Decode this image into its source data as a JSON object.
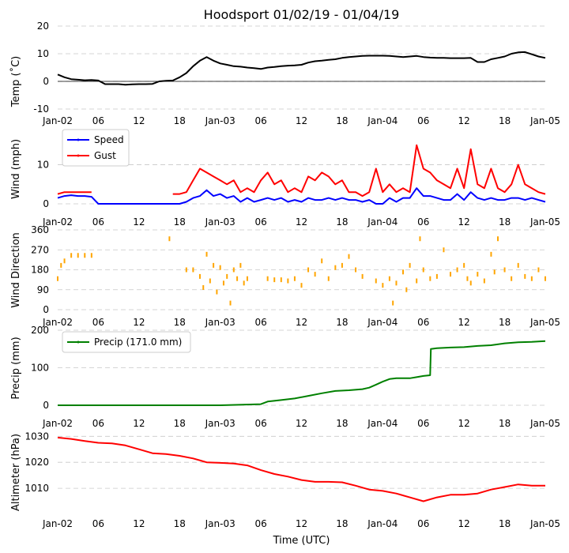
{
  "chart_data": [
    {
      "type": "line",
      "title": "Hoodsport 01/02/19 - 01/04/19",
      "ylabel": "Temp ($^\\circ$C)",
      "ylabel_display": "Temp (˚C)",
      "ylim": [
        -10,
        20
      ],
      "yticks": [
        -10,
        0,
        10,
        20
      ],
      "xticks": [
        "Jan-02",
        "06",
        "12",
        "18",
        "Jan-03",
        "06",
        "12",
        "18",
        "Jan-04",
        "06",
        "12",
        "18",
        "Jan-05"
      ],
      "xlim_hours": [
        0,
        72
      ],
      "zero_line": true,
      "series": [
        {
          "name": "Temp",
          "color": "#000000",
          "x": [
            0,
            1,
            2,
            3,
            4,
            5,
            6,
            7,
            8,
            9,
            10,
            11,
            12,
            13,
            14,
            15,
            16,
            17,
            18,
            19,
            20,
            21,
            22,
            23,
            24,
            25,
            26,
            27,
            28,
            29,
            30,
            31,
            32,
            33,
            34,
            35,
            36,
            37,
            38,
            39,
            40,
            41,
            42,
            43,
            44,
            45,
            46,
            47,
            48,
            49,
            50,
            51,
            52,
            53,
            54,
            55,
            56,
            57,
            58,
            59,
            60,
            61,
            62,
            63,
            64,
            65,
            66,
            67,
            68,
            69,
            70,
            71,
            72
          ],
          "y": [
            2.5,
            1.5,
            0.8,
            0.6,
            0.4,
            0.5,
            0.3,
            -1.0,
            -1.0,
            -1.0,
            -1.2,
            -1.1,
            -1.0,
            -1.0,
            -0.9,
            0.0,
            0.2,
            0.3,
            1.5,
            3.0,
            5.5,
            7.5,
            8.8,
            7.5,
            6.5,
            6.0,
            5.5,
            5.3,
            5.0,
            4.8,
            4.5,
            5.0,
            5.2,
            5.5,
            5.7,
            5.8,
            6.0,
            6.8,
            7.3,
            7.5,
            7.8,
            8.0,
            8.5,
            8.8,
            9.0,
            9.2,
            9.3,
            9.3,
            9.3,
            9.2,
            9.0,
            8.8,
            9.0,
            9.2,
            8.8,
            8.6,
            8.5,
            8.5,
            8.4,
            8.4,
            8.4,
            8.5,
            7.0,
            7.0,
            8.0,
            8.5,
            9.0,
            10.0,
            10.5,
            10.6,
            9.8,
            9.0,
            8.5
          ]
        }
      ]
    },
    {
      "type": "line",
      "ylabel": "Wind (mph)",
      "ylim": [
        0,
        18
      ],
      "yticks": [
        0,
        10
      ],
      "xticks": [
        "Jan-02",
        "06",
        "12",
        "18",
        "Jan-03",
        "06",
        "12",
        "18",
        "Jan-04",
        "06",
        "12",
        "18",
        "Jan-05"
      ],
      "legend": [
        "Speed",
        "Gust"
      ],
      "legend_loc": "upper-left",
      "series": [
        {
          "name": "Speed",
          "color": "#0000ff",
          "x": [
            0,
            1,
            2,
            3,
            4,
            5,
            6,
            7,
            8,
            9,
            10,
            11,
            12,
            13,
            14,
            15,
            16,
            17,
            18,
            19,
            20,
            21,
            22,
            23,
            24,
            25,
            26,
            27,
            28,
            29,
            30,
            31,
            32,
            33,
            34,
            35,
            36,
            37,
            38,
            39,
            40,
            41,
            42,
            43,
            44,
            45,
            46,
            47,
            48,
            49,
            50,
            51,
            52,
            53,
            54,
            55,
            56,
            57,
            58,
            59,
            60,
            61,
            62,
            63,
            64,
            65,
            66,
            67,
            68,
            69,
            70,
            71,
            72
          ],
          "y": [
            1.5,
            2.0,
            2.2,
            2.0,
            2.0,
            1.8,
            0,
            0,
            0,
            0,
            0,
            0,
            0,
            0,
            0,
            0,
            0,
            0,
            0,
            0.5,
            1.5,
            2.0,
            3.5,
            2.0,
            2.5,
            1.5,
            2.0,
            0.5,
            1.5,
            0.5,
            1.0,
            1.5,
            1.0,
            1.5,
            0.5,
            1.0,
            0.5,
            1.5,
            1.0,
            1.0,
            1.5,
            1.0,
            1.5,
            1.0,
            1.0,
            0.5,
            1.0,
            0,
            0,
            1.5,
            0.5,
            1.5,
            1.5,
            4.0,
            2.0,
            2.0,
            1.5,
            1.0,
            1.0,
            2.5,
            1.0,
            3.0,
            1.5,
            1.0,
            1.5,
            1.0,
            1.0,
            1.5,
            1.5,
            1.0,
            1.5,
            1.0,
            0.5
          ]
        },
        {
          "name": "Gust",
          "color": "#ff0000",
          "x": [
            0,
            1,
            2,
            3,
            4,
            5,
            6,
            7,
            8,
            9,
            10,
            11,
            12,
            13,
            14,
            15,
            16,
            17,
            18,
            19,
            20,
            21,
            22,
            23,
            24,
            25,
            26,
            27,
            28,
            29,
            30,
            31,
            32,
            33,
            34,
            35,
            36,
            37,
            38,
            39,
            40,
            41,
            42,
            43,
            44,
            45,
            46,
            47,
            48,
            49,
            50,
            51,
            52,
            53,
            54,
            55,
            56,
            57,
            58,
            59,
            60,
            61,
            62,
            63,
            64,
            65,
            66,
            67,
            68,
            69,
            70,
            71,
            72
          ],
          "y": [
            2.5,
            3.0,
            3.0,
            3.0,
            3.0,
            3.0,
            null,
            null,
            null,
            null,
            null,
            null,
            null,
            null,
            null,
            null,
            null,
            2.5,
            2.5,
            3.0,
            6.0,
            9.0,
            8.0,
            7.0,
            6.0,
            5.0,
            6.0,
            3.0,
            4.0,
            3.0,
            6.0,
            8.0,
            5.0,
            6.0,
            3.0,
            4.0,
            3.0,
            7.0,
            6.0,
            8.0,
            7.0,
            5.0,
            6.0,
            3.0,
            3.0,
            2.0,
            3.0,
            9.0,
            3.0,
            5.0,
            3.0,
            4.0,
            3.0,
            15.0,
            9.0,
            8.0,
            6.0,
            5.0,
            4.0,
            9.0,
            4.0,
            14.0,
            5.0,
            4.0,
            9.0,
            4.0,
            3.0,
            5.0,
            10.0,
            5.0,
            4.0,
            3.0,
            2.5
          ]
        }
      ]
    },
    {
      "type": "scatter",
      "ylabel": "Wind Direction",
      "ylim": [
        0,
        360
      ],
      "yticks": [
        0,
        90,
        180,
        270,
        360
      ],
      "xticks": [
        "Jan-02",
        "06",
        "12",
        "18",
        "Jan-03",
        "06",
        "12",
        "18",
        "Jan-04",
        "06",
        "12",
        "18",
        "Jan-05"
      ],
      "series": [
        {
          "name": "Direction",
          "color": "#ffa500",
          "x": [
            0,
            0.5,
            1,
            2,
            3,
            4,
            5,
            16.5,
            19,
            20,
            21,
            21.5,
            22,
            22.5,
            23,
            23.5,
            24,
            24.5,
            25,
            25.5,
            26,
            26.5,
            27,
            27.5,
            28,
            31,
            32,
            33,
            34,
            35,
            36,
            37,
            38,
            39,
            40,
            41,
            42,
            43,
            44,
            45,
            47,
            48,
            49,
            49.5,
            50,
            51,
            51.5,
            52,
            53,
            53.5,
            54,
            55,
            56,
            57,
            58,
            59,
            60,
            60.5,
            61,
            62,
            63,
            64,
            64.5,
            65,
            66,
            67,
            68,
            69,
            70,
            71,
            72
          ],
          "y": [
            140,
            200,
            220,
            245,
            245,
            245,
            245,
            320,
            180,
            180,
            150,
            100,
            250,
            130,
            200,
            80,
            190,
            120,
            150,
            30,
            180,
            140,
            200,
            120,
            140,
            140,
            135,
            135,
            130,
            140,
            110,
            180,
            160,
            220,
            140,
            190,
            200,
            240,
            180,
            150,
            130,
            110,
            140,
            30,
            120,
            170,
            90,
            200,
            130,
            320,
            180,
            140,
            150,
            270,
            160,
            180,
            200,
            140,
            120,
            160,
            130,
            250,
            170,
            320,
            180,
            140,
            200,
            150,
            140,
            180,
            140
          ]
        }
      ]
    },
    {
      "type": "line",
      "ylabel": "Precip (mm)",
      "ylim": [
        0,
        200
      ],
      "yticks": [
        0,
        100,
        200
      ],
      "xticks": [
        "Jan-02",
        "06",
        "12",
        "18",
        "Jan-03",
        "06",
        "12",
        "18",
        "Jan-04",
        "06",
        "12",
        "18",
        "Jan-05"
      ],
      "legend": [
        "Precip (171.0 mm)"
      ],
      "legend_loc": "upper-left",
      "series": [
        {
          "name": "Precip (171.0 mm)",
          "color": "#008000",
          "x": [
            0,
            6,
            12,
            18,
            24,
            30,
            31,
            33,
            35,
            37,
            39,
            41,
            43,
            45,
            46,
            47,
            48,
            49,
            50,
            51,
            52,
            53,
            54,
            55,
            55.1,
            56,
            58,
            60,
            62,
            64,
            66,
            68,
            70,
            72
          ],
          "y": [
            0,
            0,
            0,
            0,
            0,
            3,
            10,
            14,
            18,
            25,
            32,
            38,
            40,
            43,
            47,
            55,
            63,
            70,
            72,
            72,
            72,
            75,
            78,
            80,
            150,
            152,
            154,
            155,
            158,
            160,
            165,
            168,
            169,
            171
          ]
        }
      ]
    },
    {
      "type": "line",
      "ylabel": "Altimeter (hPa)",
      "xlabel": "Time (UTC)",
      "ylim": [
        1000,
        1031
      ],
      "yticks": [
        1010,
        1020,
        1030
      ],
      "xticks": [
        "Jan-02",
        "06",
        "12",
        "18",
        "Jan-03",
        "06",
        "12",
        "18",
        "Jan-04",
        "06",
        "12",
        "18",
        "Jan-05"
      ],
      "series": [
        {
          "name": "Altimeter",
          "color": "#ff0000",
          "x": [
            0,
            2,
            4,
            6,
            8,
            10,
            12,
            14,
            16,
            18,
            20,
            22,
            24,
            26,
            28,
            30,
            32,
            34,
            36,
            38,
            40,
            42,
            44,
            46,
            48,
            50,
            52,
            54,
            56,
            58,
            60,
            62,
            64,
            66,
            68,
            70,
            72
          ],
          "y": [
            1029.5,
            1029.0,
            1028.2,
            1027.5,
            1027.3,
            1026.5,
            1025.0,
            1023.5,
            1023.2,
            1022.5,
            1021.5,
            1020.0,
            1019.8,
            1019.5,
            1018.8,
            1017.0,
            1015.5,
            1014.5,
            1013.2,
            1012.5,
            1012.5,
            1012.3,
            1011.0,
            1009.5,
            1009.0,
            1008.0,
            1006.5,
            1005.0,
            1006.5,
            1007.5,
            1007.5,
            1008.0,
            1009.5,
            1010.5,
            1011.5,
            1011.0,
            1011.0
          ]
        }
      ]
    }
  ]
}
